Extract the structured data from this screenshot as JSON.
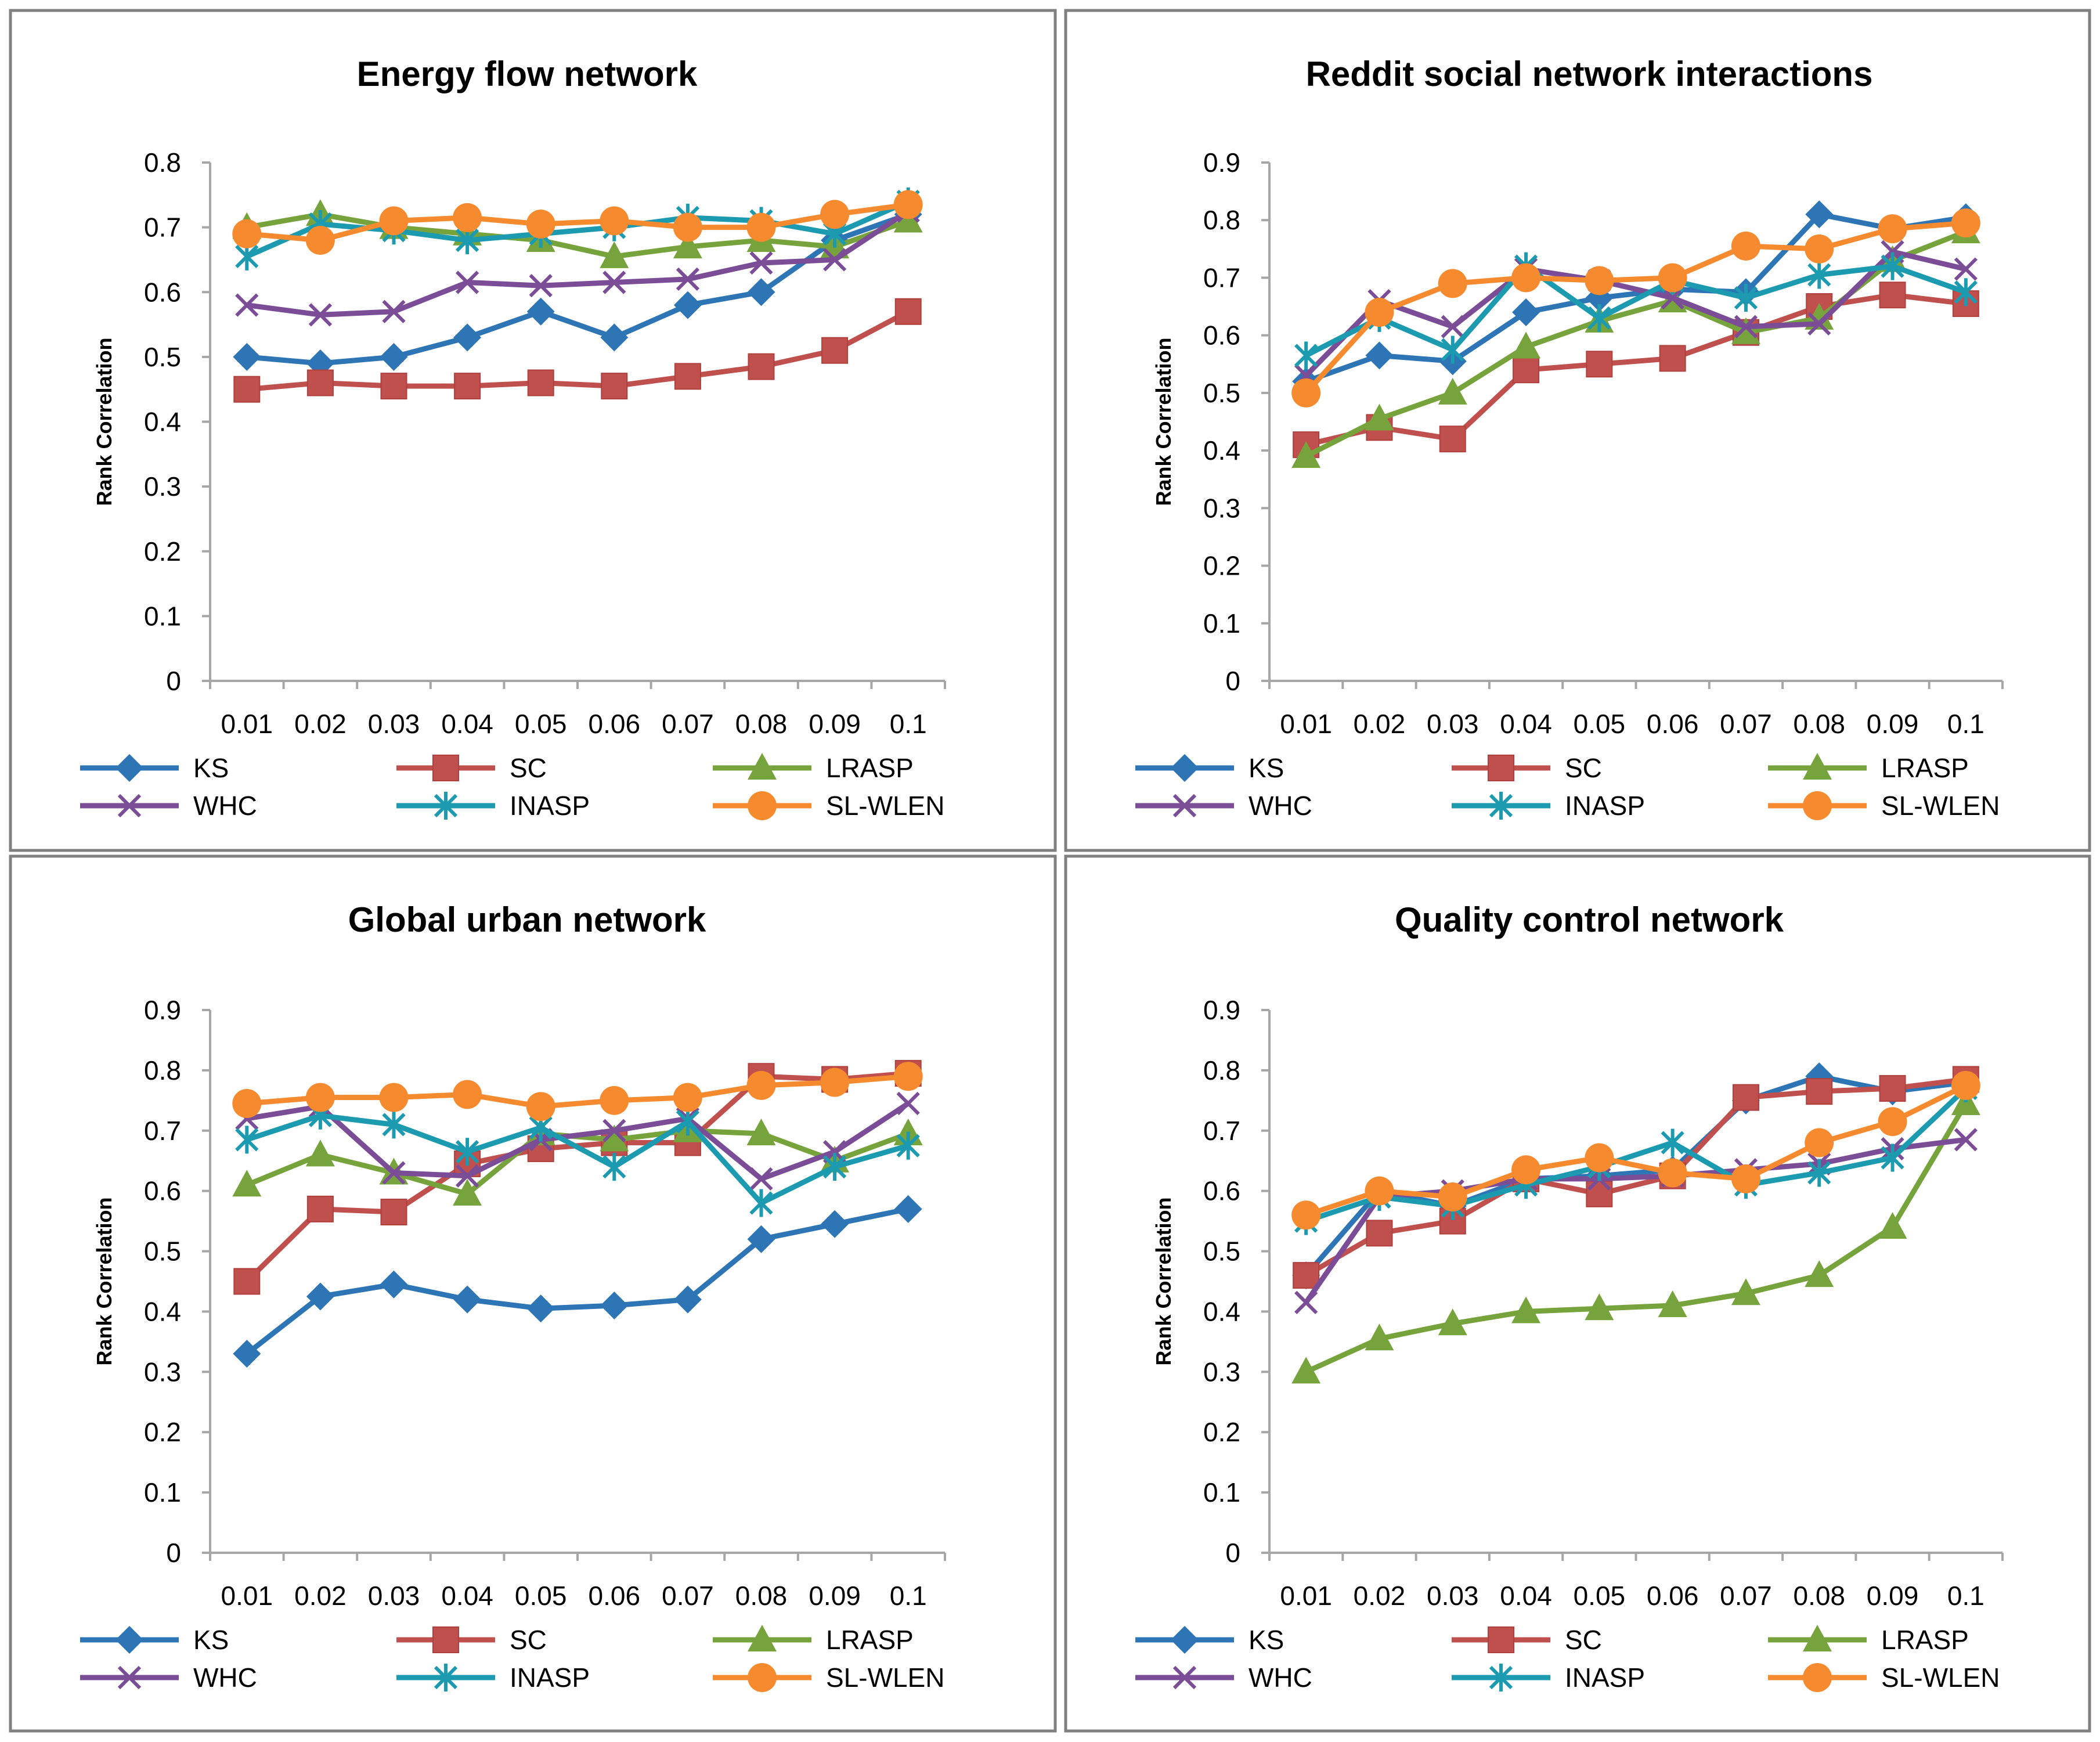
{
  "chart_data": [
    {
      "type": "line",
      "title": "Energy flow network",
      "ylabel": "Rank Correlation",
      "xlabel": "",
      "ylim": [
        0,
        0.8
      ],
      "yticks": [
        "0",
        "0.1",
        "0.2",
        "0.3",
        "0.4",
        "0.5",
        "0.6",
        "0.7",
        "0.8"
      ],
      "categories": [
        "0.01",
        "0.02",
        "0.03",
        "0.04",
        "0.05",
        "0.06",
        "0.07",
        "0.08",
        "0.09",
        "0.1"
      ],
      "grid": false,
      "legend": "bottom",
      "series": [
        {
          "name": "KS",
          "values": [
            0.5,
            0.49,
            0.5,
            0.53,
            0.57,
            0.53,
            0.58,
            0.6,
            0.68,
            0.72
          ]
        },
        {
          "name": "SC",
          "values": [
            0.45,
            0.46,
            0.455,
            0.455,
            0.46,
            0.455,
            0.47,
            0.485,
            0.51,
            0.57
          ]
        },
        {
          "name": "LRASP",
          "values": [
            0.7,
            0.72,
            0.7,
            0.69,
            0.68,
            0.655,
            0.67,
            0.68,
            0.67,
            0.71
          ]
        },
        {
          "name": "WHC",
          "values": [
            0.58,
            0.565,
            0.57,
            0.615,
            0.61,
            0.615,
            0.62,
            0.645,
            0.65,
            0.725
          ]
        },
        {
          "name": "INASP",
          "values": [
            0.655,
            0.705,
            0.695,
            0.68,
            0.69,
            0.7,
            0.715,
            0.71,
            0.69,
            0.74
          ]
        },
        {
          "name": "SL-WLEN",
          "values": [
            0.69,
            0.68,
            0.71,
            0.715,
            0.705,
            0.71,
            0.7,
            0.7,
            0.72,
            0.735
          ]
        }
      ]
    },
    {
      "type": "line",
      "title": "Reddit social network interactions",
      "ylabel": "Rank Correlation",
      "xlabel": "",
      "ylim": [
        0,
        0.9
      ],
      "yticks": [
        "0",
        "0.1",
        "0.2",
        "0.3",
        "0.4",
        "0.5",
        "0.6",
        "0.7",
        "0.8",
        "0.9"
      ],
      "categories": [
        "0.01",
        "0.02",
        "0.03",
        "0.04",
        "0.05",
        "0.06",
        "0.07",
        "0.08",
        "0.09",
        "0.1"
      ],
      "grid": false,
      "legend": "bottom",
      "series": [
        {
          "name": "KS",
          "values": [
            0.52,
            0.565,
            0.555,
            0.64,
            0.665,
            0.68,
            0.675,
            0.81,
            0.785,
            0.805
          ]
        },
        {
          "name": "SC",
          "values": [
            0.41,
            0.44,
            0.42,
            0.54,
            0.55,
            0.56,
            0.605,
            0.65,
            0.67,
            0.655
          ]
        },
        {
          "name": "LRASP",
          "values": [
            0.39,
            0.455,
            0.5,
            0.58,
            0.625,
            0.66,
            0.605,
            0.63,
            0.73,
            0.78
          ]
        },
        {
          "name": "WHC",
          "values": [
            0.53,
            0.66,
            0.615,
            0.715,
            0.695,
            0.665,
            0.615,
            0.62,
            0.745,
            0.715
          ]
        },
        {
          "name": "INASP",
          "values": [
            0.565,
            0.63,
            0.575,
            0.72,
            0.63,
            0.695,
            0.665,
            0.705,
            0.72,
            0.675
          ]
        },
        {
          "name": "SL-WLEN",
          "values": [
            0.5,
            0.64,
            0.69,
            0.7,
            0.695,
            0.7,
            0.755,
            0.75,
            0.785,
            0.795
          ]
        }
      ]
    },
    {
      "type": "line",
      "title": "Global urban network",
      "ylabel": "Rank Correlation",
      "xlabel": "",
      "ylim": [
        0,
        0.9
      ],
      "yticks": [
        "0",
        "0.1",
        "0.2",
        "0.3",
        "0.4",
        "0.5",
        "0.6",
        "0.7",
        "0.8",
        "0.9"
      ],
      "categories": [
        "0.01",
        "0.02",
        "0.03",
        "0.04",
        "0.05",
        "0.06",
        "0.07",
        "0.08",
        "0.09",
        "0.1"
      ],
      "grid": false,
      "legend": "bottom",
      "series": [
        {
          "name": "KS",
          "values": [
            0.33,
            0.425,
            0.445,
            0.42,
            0.405,
            0.41,
            0.42,
            0.52,
            0.545,
            0.57
          ]
        },
        {
          "name": "SC",
          "values": [
            0.45,
            0.57,
            0.565,
            0.645,
            0.67,
            0.68,
            0.68,
            0.79,
            0.785,
            0.795
          ]
        },
        {
          "name": "LRASP",
          "values": [
            0.61,
            0.66,
            0.63,
            0.595,
            0.695,
            0.685,
            0.7,
            0.695,
            0.65,
            0.695
          ]
        },
        {
          "name": "WHC",
          "values": [
            0.72,
            0.74,
            0.63,
            0.625,
            0.685,
            0.7,
            0.72,
            0.62,
            0.665,
            0.745
          ]
        },
        {
          "name": "INASP",
          "values": [
            0.685,
            0.725,
            0.71,
            0.665,
            0.705,
            0.64,
            0.715,
            0.58,
            0.64,
            0.675
          ]
        },
        {
          "name": "SL-WLEN",
          "values": [
            0.745,
            0.755,
            0.755,
            0.76,
            0.74,
            0.75,
            0.755,
            0.775,
            0.78,
            0.79
          ]
        }
      ]
    },
    {
      "type": "line",
      "title": "Quality control network",
      "ylabel": "Rank Correlation",
      "xlabel": "",
      "ylim": [
        0,
        0.9
      ],
      "yticks": [
        "0",
        "0.1",
        "0.2",
        "0.3",
        "0.4",
        "0.5",
        "0.6",
        "0.7",
        "0.8",
        "0.9"
      ],
      "categories": [
        "0.01",
        "0.02",
        "0.03",
        "0.04",
        "0.05",
        "0.06",
        "0.07",
        "0.08",
        "0.09",
        "0.1"
      ],
      "grid": false,
      "legend": "bottom",
      "series": [
        {
          "name": "KS",
          "values": [
            0.46,
            0.6,
            0.575,
            0.62,
            0.625,
            0.635,
            0.75,
            0.79,
            0.765,
            0.78
          ]
        },
        {
          "name": "SC",
          "values": [
            0.46,
            0.53,
            0.55,
            0.62,
            0.595,
            0.625,
            0.755,
            0.765,
            0.77,
            0.785
          ]
        },
        {
          "name": "LRASP",
          "values": [
            0.3,
            0.355,
            0.38,
            0.4,
            0.405,
            0.41,
            0.43,
            0.46,
            0.54,
            0.745
          ]
        },
        {
          "name": "WHC",
          "values": [
            0.415,
            0.59,
            0.6,
            0.62,
            0.62,
            0.625,
            0.635,
            0.645,
            0.67,
            0.685
          ]
        },
        {
          "name": "INASP",
          "values": [
            0.55,
            0.59,
            0.575,
            0.61,
            0.64,
            0.68,
            0.61,
            0.63,
            0.655,
            0.77
          ]
        },
        {
          "name": "SL-WLEN",
          "values": [
            0.56,
            0.6,
            0.59,
            0.635,
            0.655,
            0.63,
            0.62,
            0.68,
            0.715,
            0.775
          ]
        }
      ]
    }
  ],
  "series_styles": [
    {
      "name": "KS",
      "color": "#2E75B6",
      "marker": "diamond"
    },
    {
      "name": "SC",
      "color": "#C0504D",
      "marker": "square"
    },
    {
      "name": "LRASP",
      "color": "#77A33C",
      "marker": "triangle"
    },
    {
      "name": "WHC",
      "color": "#7B4D97",
      "marker": "x"
    },
    {
      "name": "INASP",
      "color": "#1B9AB0",
      "marker": "star"
    },
    {
      "name": "SL-WLEN",
      "color": "#F58A2E",
      "marker": "circle"
    }
  ]
}
